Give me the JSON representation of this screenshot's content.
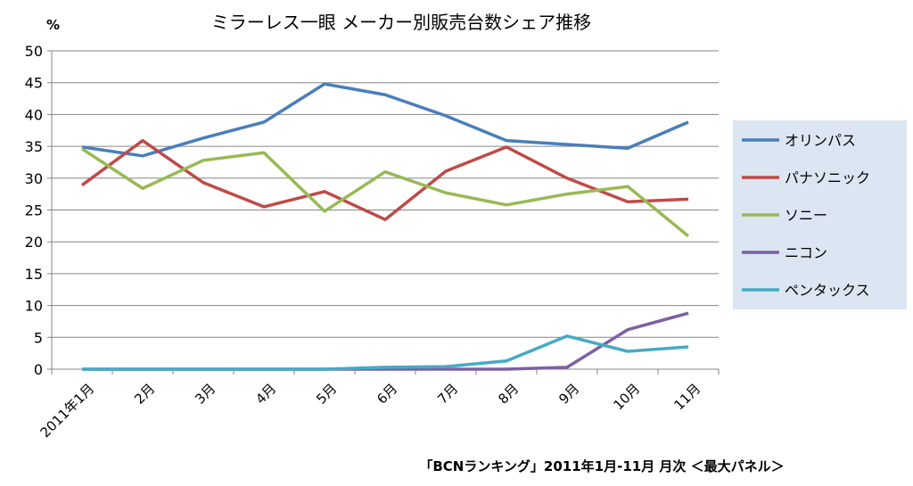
{
  "chart_data": {
    "type": "line",
    "title": "ミラーレス一眼 メーカー別販売台数シェア推移",
    "ylabel": "%",
    "source": "「BCNランキング」2011年1月-11月 月次 ＜最大パネル＞",
    "ylim": [
      0,
      50
    ],
    "yticks": [
      "0",
      "5",
      "10",
      "15",
      "20",
      "25",
      "30",
      "35",
      "40",
      "45",
      "50"
    ],
    "categories": [
      "2011年1月",
      "2月",
      "3月",
      "4月",
      "5月",
      "6月",
      "7月",
      "8月",
      "9月",
      "10月",
      "11月"
    ],
    "legend_position": "right",
    "series": [
      {
        "name": "オリンパス",
        "color": "#4a7ebb",
        "values": [
          34.9,
          33.5,
          36.3,
          38.8,
          44.8,
          43.1,
          39.8,
          35.9,
          35.3,
          34.7,
          38.8
        ]
      },
      {
        "name": "パナソニック",
        "color": "#be4b48",
        "values": [
          28.9,
          35.9,
          29.3,
          25.5,
          27.9,
          23.5,
          31.1,
          34.9,
          30.0,
          26.3,
          26.7
        ]
      },
      {
        "name": "ソニー",
        "color": "#98b954",
        "values": [
          34.6,
          28.4,
          32.8,
          34.0,
          24.8,
          31.0,
          27.7,
          25.8,
          27.5,
          28.7,
          20.9
        ]
      },
      {
        "name": "ニコン",
        "color": "#7d60a0",
        "values": [
          0,
          0,
          0,
          0,
          0,
          0,
          0,
          0,
          0.3,
          6.2,
          8.8
        ]
      },
      {
        "name": "ペンタックス",
        "color": "#46aac5",
        "values": [
          0,
          0,
          0,
          0,
          0,
          0.3,
          0.4,
          1.3,
          5.2,
          2.8,
          3.5
        ]
      }
    ]
  }
}
